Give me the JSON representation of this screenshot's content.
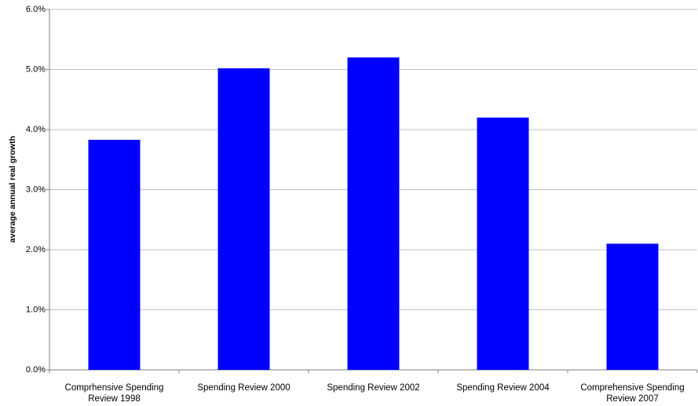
{
  "chart_data": {
    "type": "bar",
    "y_label": "average annual real growth",
    "categories": [
      "Comprhensive Spending Review 1998",
      "Spending Review 2000",
      "Spending Review 2002",
      "Spending Review 2004",
      "Comprehensive Spending Review 2007"
    ],
    "values": [
      3.83,
      5.02,
      5.2,
      4.2,
      2.1
    ],
    "color": "#0000ff",
    "ylim": [
      0,
      6
    ],
    "yticks": [
      {
        "value": 0,
        "label": "0.0%"
      },
      {
        "value": 1,
        "label": "1.0%"
      },
      {
        "value": 2,
        "label": "2.0%"
      },
      {
        "value": 3,
        "label": "3.0%"
      },
      {
        "value": 4,
        "label": "4.0%"
      },
      {
        "value": 5,
        "label": "5.0%"
      },
      {
        "value": 6,
        "label": "6.0%"
      }
    ],
    "grid": true
  }
}
